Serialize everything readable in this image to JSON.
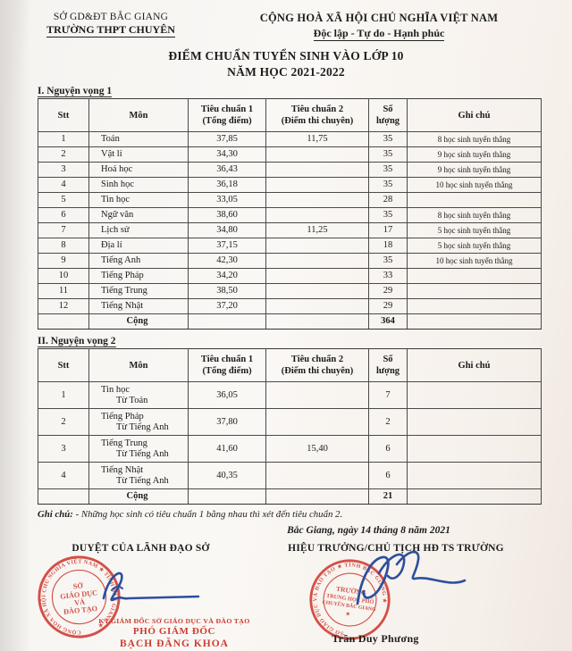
{
  "header": {
    "org_line1": "SỞ GD&ĐT BẮC GIANG",
    "org_line2": "TRƯỜNG THPT CHUYÊN",
    "national_line1": "CỘNG HOÀ XÃ HỘI CHỦ NGHĨA VIỆT NAM",
    "national_line2": "Độc lập - Tự do - Hạnh phúc",
    "title_line1": "ĐIỂM CHUẨN TUYỂN SINH VÀO LỚP 10",
    "title_line2": "NĂM HỌC 2021-2022"
  },
  "section1_label": "I. Nguyện vọng 1",
  "section2_label": "II. Nguyện vọng 2",
  "columns": [
    "Stt",
    "Môn",
    "Tiêu chuẩn 1\n(Tổng điểm)",
    "Tiêu chuẩn 2\n(Điểm thi chuyên)",
    "Số\nlượng",
    "Ghi chú"
  ],
  "table1": {
    "rows": [
      {
        "cells": [
          "1",
          "Toán",
          "37,85",
          "11,75",
          "35",
          "8 học sinh tuyển thẳng"
        ]
      },
      {
        "cells": [
          "2",
          "Vật lí",
          "34,30",
          "",
          "35",
          "9 học sinh tuyển thẳng"
        ]
      },
      {
        "cells": [
          "3",
          "Hoá học",
          "36,43",
          "",
          "35",
          "9 học sinh tuyển thẳng"
        ]
      },
      {
        "cells": [
          "4",
          "Sinh học",
          "36,18",
          "",
          "35",
          "10 học sinh tuyển thẳng"
        ]
      },
      {
        "cells": [
          "5",
          "Tin học",
          "33,05",
          "",
          "28",
          ""
        ]
      },
      {
        "cells": [
          "6",
          "Ngữ văn",
          "38,60",
          "",
          "35",
          "8 học sinh tuyển thẳng"
        ]
      },
      {
        "cells": [
          "7",
          "Lịch sử",
          "34,80",
          "11,25",
          "17",
          "5 học sinh tuyển thẳng"
        ]
      },
      {
        "cells": [
          "8",
          "Địa lí",
          "37,15",
          "",
          "18",
          "5 học sinh tuyển thẳng"
        ]
      },
      {
        "cells": [
          "9",
          "Tiếng Anh",
          "42,30",
          "",
          "35",
          "10 học sinh tuyển thẳng"
        ]
      },
      {
        "cells": [
          "10",
          "Tiếng Pháp",
          "34,20",
          "",
          "33",
          ""
        ]
      },
      {
        "cells": [
          "11",
          "Tiếng Trung",
          "38,50",
          "",
          "29",
          ""
        ]
      },
      {
        "cells": [
          "12",
          "Tiếng Nhật",
          "37,20",
          "",
          "29",
          ""
        ]
      },
      {
        "bold": true,
        "cells": [
          "",
          "Cộng",
          "",
          "",
          "364",
          ""
        ]
      }
    ]
  },
  "table2": {
    "rows": [
      {
        "cells": [
          "1",
          {
            "lines": [
              "Tin học",
              "Từ Toán"
            ]
          },
          "36,05",
          "",
          "7",
          ""
        ]
      },
      {
        "cells": [
          "2",
          {
            "lines": [
              "Tiếng Pháp",
              "Từ Tiếng Anh"
            ]
          },
          "37,80",
          "",
          "2",
          ""
        ]
      },
      {
        "cells": [
          "3",
          {
            "lines": [
              "Tiếng Trung",
              "Từ Tiếng Anh"
            ]
          },
          "41,60",
          "15,40",
          "6",
          ""
        ]
      },
      {
        "cells": [
          "4",
          {
            "lines": [
              "Tiếng Nhật",
              "Từ Tiếng Anh"
            ]
          },
          "40,35",
          "",
          "6",
          ""
        ]
      },
      {
        "bold": true,
        "cells": [
          "",
          "Cộng",
          "",
          "",
          "21",
          ""
        ]
      }
    ]
  },
  "note": {
    "label": "Ghi chú:",
    "text": " - Những học sinh có tiêu chuẩn 1 bằng nhau thì xét đến tiêu chuẩn 2."
  },
  "date_line": "Bắc Giang, ngày 14 tháng 8 năm 2021",
  "signatures": {
    "left": {
      "heading": "DUYỆT CỦA LÃNH ĐẠO SỞ",
      "caption_line1": "KT.GIÁM ĐỐC SỞ GIÁO DỤC VÀ ĐÀO TẠO",
      "caption_line2": "PHÓ GIÁM ĐỐC",
      "caption_line3": "BẠCH ĐĂNG KHOA"
    },
    "right": {
      "heading": "HIỆU TRƯỞNG/CHỦ TỊCH HĐ TS TRƯỜNG",
      "name": "Trần Duy Phương"
    }
  },
  "stamps": {
    "left": {
      "ring_text": "CỘNG HÒA XÃ HỘI CHỦ NGHĨA VIỆT NAM ★ TỈNH BẮC GIANG ★",
      "center_line1": "SỞ",
      "center_line2": "GIÁO DỤC",
      "center_line3": "VÀ",
      "center_line4": "ĐÀO TẠO"
    },
    "right": {
      "ring_text": "SỞ GIÁO DỤC VÀ ĐÀO TẠO ★ TỈNH BẮC GIANG ★",
      "center_line1": "TRƯỜNG",
      "center_line2": "TRUNG HỌC PHỔ",
      "center_line3": "CHUYÊN BẮC GIANG",
      "center_line4": "★"
    }
  },
  "colors": {
    "stamp_red": "#cf3a30",
    "caption_red": "#cf3a30",
    "signature_blue": "#2d4f9e",
    "text": "#1d1d1d"
  }
}
